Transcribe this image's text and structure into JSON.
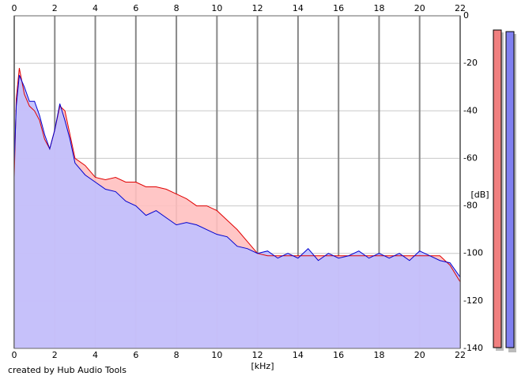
{
  "chart_data": {
    "type": "area",
    "x_label": "[kHz]",
    "y_label": "[dB]",
    "footer": "created by Hub Audio Tools",
    "x": [
      0,
      0.1,
      0.25,
      0.5,
      0.75,
      1,
      1.25,
      1.5,
      1.75,
      2,
      2.25,
      2.5,
      2.75,
      3,
      3.5,
      4,
      4.5,
      5,
      5.5,
      6,
      6.5,
      7,
      7.5,
      8,
      8.5,
      9,
      9.5,
      10,
      10.5,
      11,
      11.5,
      12,
      12.5,
      13,
      13.5,
      14,
      14.5,
      15,
      15.5,
      16,
      16.5,
      17,
      17.5,
      18,
      18.5,
      19,
      19.5,
      20,
      20.5,
      21,
      21.5,
      22
    ],
    "series": [
      {
        "color": "#e00000",
        "fill": "#ffc0c0",
        "values": [
          -68,
          -35,
          -22,
          -33,
          -38,
          -40,
          -44,
          -52,
          -56,
          -48,
          -38,
          -40,
          -50,
          -60,
          -63,
          -68,
          -69,
          -68,
          -70,
          -70,
          -72,
          -72,
          -73,
          -75,
          -77,
          -80,
          -80,
          -82,
          -86,
          -90,
          -95,
          -100,
          -101,
          -101,
          -101,
          -101,
          -101,
          -101,
          -101,
          -101,
          -101,
          -101,
          -101,
          -101,
          -101,
          -101,
          -101,
          -101,
          -101,
          -101,
          -105,
          -112
        ]
      },
      {
        "color": "#0000d0",
        "fill": "#c0c0ff",
        "values": [
          -62,
          -38,
          -25,
          -30,
          -36,
          -36,
          -42,
          -50,
          -56,
          -48,
          -37,
          -44,
          -52,
          -62,
          -67,
          -70,
          -73,
          -74,
          -78,
          -80,
          -84,
          -82,
          -85,
          -88,
          -87,
          -88,
          -90,
          -92,
          -93,
          -97,
          -98,
          -100,
          -99,
          -102,
          -100,
          -102,
          -98,
          -103,
          -100,
          -102,
          -101,
          -99,
          -102,
          -100,
          -102,
          -100,
          -103,
          -99,
          -101,
          -103,
          -104,
          -110
        ]
      }
    ],
    "xlim": [
      0,
      22
    ],
    "xticks": [
      0,
      2,
      4,
      6,
      8,
      10,
      12,
      14,
      16,
      18,
      20,
      22
    ],
    "ylim": [
      -140,
      0
    ],
    "yticks": [
      0,
      -20,
      -40,
      -60,
      -80,
      -100,
      -120,
      -140
    ],
    "grid": true
  }
}
